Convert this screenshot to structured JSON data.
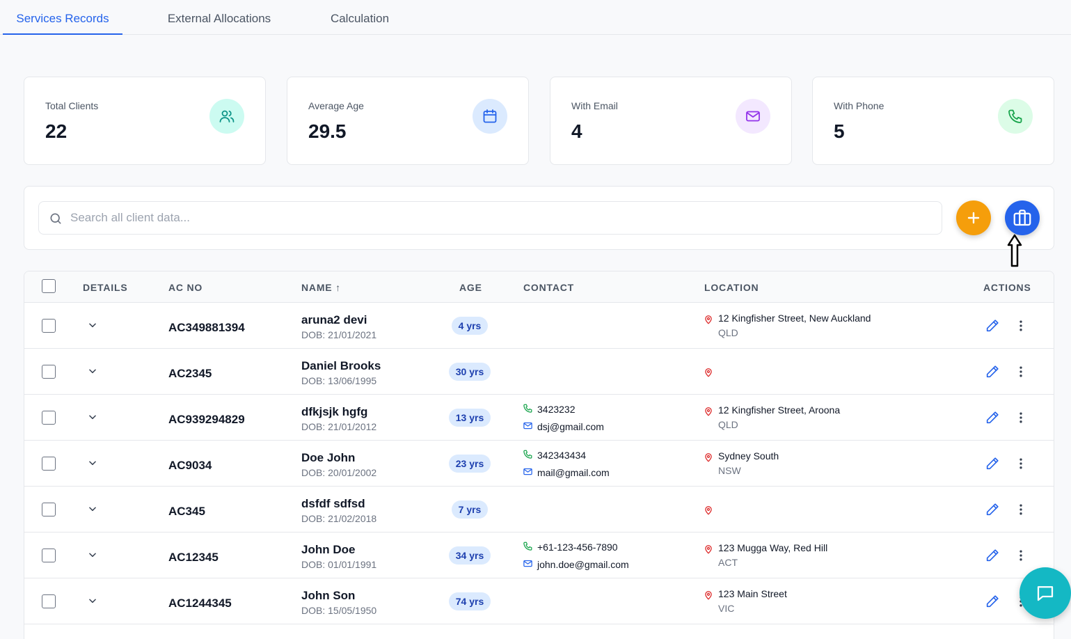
{
  "tabs": [
    {
      "label": "Services Records",
      "active": true
    },
    {
      "label": "External Allocations",
      "active": false
    },
    {
      "label": "Calculation",
      "active": false
    }
  ],
  "stats": [
    {
      "label": "Total Clients",
      "value": "22",
      "icon": "users-icon",
      "bg": "#ccfbf1",
      "color": "#0d9488"
    },
    {
      "label": "Average Age",
      "value": "29.5",
      "icon": "calendar-icon",
      "bg": "#dbeafe",
      "color": "#2563eb"
    },
    {
      "label": "With Email",
      "value": "4",
      "icon": "mail-icon",
      "bg": "#f3e8ff",
      "color": "#9333ea"
    },
    {
      "label": "With Phone",
      "value": "5",
      "icon": "phone-icon",
      "bg": "#dcfce7",
      "color": "#16a34a"
    }
  ],
  "search": {
    "placeholder": "Search all client data..."
  },
  "table": {
    "headers": {
      "details": "DETAILS",
      "ac_no": "AC NO",
      "name": "NAME ↑",
      "age": "AGE",
      "contact": "CONTACT",
      "location": "LOCATION",
      "actions": "ACTIONS"
    },
    "rows": [
      {
        "ac_no": "AC349881394",
        "name": "aruna2 devi",
        "dob": "DOB: 21/01/2021",
        "age": "4 yrs",
        "phone": "",
        "email": "",
        "address": "12 Kingfisher Street, New Auckland",
        "state": "QLD"
      },
      {
        "ac_no": "AC2345",
        "name": "Daniel Brooks",
        "dob": "DOB: 13/06/1995",
        "age": "30 yrs",
        "phone": "",
        "email": "",
        "address": "",
        "state": ""
      },
      {
        "ac_no": "AC939294829",
        "name": "dfkjsjk hgfg",
        "dob": "DOB: 21/01/2012",
        "age": "13 yrs",
        "phone": "3423232",
        "email": "dsj@gmail.com",
        "address": "12 Kingfisher Street, Aroona",
        "state": "QLD"
      },
      {
        "ac_no": "AC9034",
        "name": "Doe John",
        "dob": "DOB: 20/01/2002",
        "age": "23 yrs",
        "phone": "342343434",
        "email": "mail@gmail.com",
        "address": "Sydney South",
        "state": "NSW"
      },
      {
        "ac_no": "AC345",
        "name": "dsfdf sdfsd",
        "dob": "DOB: 21/02/2018",
        "age": "7 yrs",
        "phone": "",
        "email": "",
        "address": "",
        "state": ""
      },
      {
        "ac_no": "AC12345",
        "name": "John Doe",
        "dob": "DOB: 01/01/1991",
        "age": "34 yrs",
        "phone": "+61-123-456-7890",
        "email": "john.doe@gmail.com",
        "address": "123 Mugga Way, Red Hill",
        "state": "ACT"
      },
      {
        "ac_no": "AC1244345",
        "name": "John Son",
        "dob": "DOB: 15/05/1950",
        "age": "74 yrs",
        "phone": "",
        "email": "",
        "address": "123 Main Street",
        "state": "VIC"
      },
      {
        "ac_no": "",
        "name": "",
        "dob": "",
        "age": "",
        "phone": "",
        "email": "",
        "address": "",
        "state": ""
      }
    ]
  },
  "colors": {
    "accent": "#2563eb",
    "add_button": "#f59e0b",
    "chat_button": "#14b8c4",
    "pin": "#dc2626",
    "phone": "#16a34a"
  }
}
